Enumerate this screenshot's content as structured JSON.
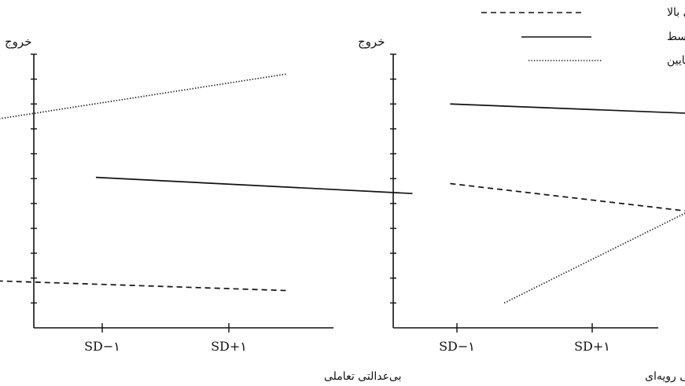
{
  "chart_data": [
    {
      "type": "line",
      "ylabel": "خروج",
      "xlabel": "بی‌عدالتی تعاملی",
      "categories": [
        "SD−۱",
        "SD+۱"
      ],
      "ylim": [
        0,
        11
      ],
      "series": [
        {
          "name": "عاطفه منفی بالا",
          "style": "dashed",
          "x": [
            -1.2,
            1.45
          ],
          "values": [
            1.95,
            1.5
          ]
        },
        {
          "name": "عاطفه منفی متوسط",
          "style": "solid",
          "x": [
            -0.05,
            2.45
          ],
          "values": [
            6.05,
            5.4
          ]
        },
        {
          "name": "عاطفه منفی پایین",
          "style": "dotted",
          "x": [
            -1.2,
            1.45
          ],
          "values": [
            8.1,
            10.2
          ]
        }
      ]
    },
    {
      "type": "line",
      "ylabel": "خروج",
      "xlabel": "بی‌عدالتی رویه‌ای",
      "categories": [
        "SD−۱",
        "SD+۱"
      ],
      "ylim": [
        0,
        11
      ],
      "series": [
        {
          "name": "عاطفه منفی بالا",
          "style": "dashed",
          "x": [
            -0.05,
            2.8
          ],
          "values": [
            5.8,
            4.0
          ]
        },
        {
          "name": "عاطفه منفی متوسط",
          "style": "solid",
          "x": [
            -0.05,
            2.3
          ],
          "values": [
            9.0,
            8.5
          ]
        },
        {
          "name": "عاطفه منفی پایین",
          "style": "dotted",
          "x": [
            0.35,
            2.35
          ],
          "values": [
            1.0,
            6.4
          ]
        }
      ]
    }
  ],
  "legend": {
    "placement": "top-right",
    "items": [
      {
        "label": "عاطفه منفی بالا",
        "style": "dashed"
      },
      {
        "label": "عاطفه منفی متوسط",
        "style": "solid"
      },
      {
        "label": "عاطفه منفی پایین",
        "style": "dotted"
      }
    ]
  }
}
